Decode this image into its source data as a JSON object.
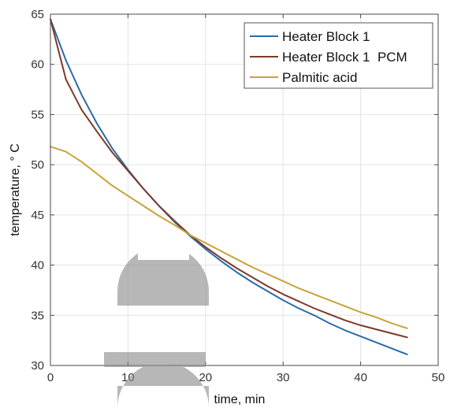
{
  "chart_data": {
    "type": "line",
    "xlabel": "time, min",
    "ylabel": "temperature, ° C",
    "xlim": [
      0,
      50
    ],
    "ylim": [
      30,
      65
    ],
    "xticks": [
      0,
      10,
      20,
      30,
      40,
      50
    ],
    "yticks": [
      30,
      35,
      40,
      45,
      50,
      55,
      60,
      65
    ],
    "xtick_labels": [
      "0",
      "10",
      "20",
      "30",
      "40",
      "50"
    ],
    "ytick_labels": [
      "30",
      "35",
      "40",
      "45",
      "50",
      "55",
      "60",
      "65"
    ],
    "grid": true,
    "legend_position": "top-right",
    "series": [
      {
        "name": "Heater Block 1",
        "color": "#2b6ba7",
        "x": [
          0,
          2,
          4,
          6,
          8,
          10,
          12,
          14,
          16,
          18,
          20,
          22,
          24,
          26,
          28,
          30,
          32,
          34,
          36,
          38,
          40,
          42,
          44,
          46
        ],
        "y": [
          64.5,
          60.4,
          57.0,
          54.1,
          51.6,
          49.5,
          47.6,
          45.9,
          44.3,
          42.9,
          41.6,
          40.4,
          39.3,
          38.3,
          37.4,
          36.5,
          35.7,
          35.0,
          34.2,
          33.5,
          32.9,
          32.3,
          31.7,
          31.1
        ]
      },
      {
        "name": "Heater Block 1  PCM",
        "color": "#7b3a2b",
        "x": [
          0,
          2,
          4,
          6,
          8,
          10,
          12,
          14,
          16,
          18,
          20,
          22,
          24,
          26,
          28,
          30,
          32,
          34,
          36,
          38,
          40,
          42,
          44,
          46
        ],
        "y": [
          64.5,
          58.5,
          55.5,
          53.3,
          51.2,
          49.4,
          47.6,
          45.9,
          44.4,
          43.0,
          41.8,
          40.7,
          39.7,
          38.8,
          37.9,
          37.1,
          36.4,
          35.7,
          35.1,
          34.5,
          34.0,
          33.6,
          33.2,
          32.8
        ]
      },
      {
        "name": "Palmitic acid",
        "color": "#c9a33a",
        "x": [
          0,
          2,
          4,
          6,
          8,
          10,
          12,
          14,
          16,
          18,
          20,
          22,
          24,
          26,
          28,
          30,
          32,
          34,
          36,
          38,
          40,
          42,
          44,
          46
        ],
        "y": [
          51.8,
          51.3,
          50.3,
          49.1,
          47.9,
          46.9,
          45.9,
          44.9,
          44.0,
          43.0,
          42.2,
          41.4,
          40.6,
          39.8,
          39.1,
          38.4,
          37.7,
          37.1,
          36.5,
          35.9,
          35.3,
          34.8,
          34.2,
          33.7
        ]
      }
    ]
  }
}
